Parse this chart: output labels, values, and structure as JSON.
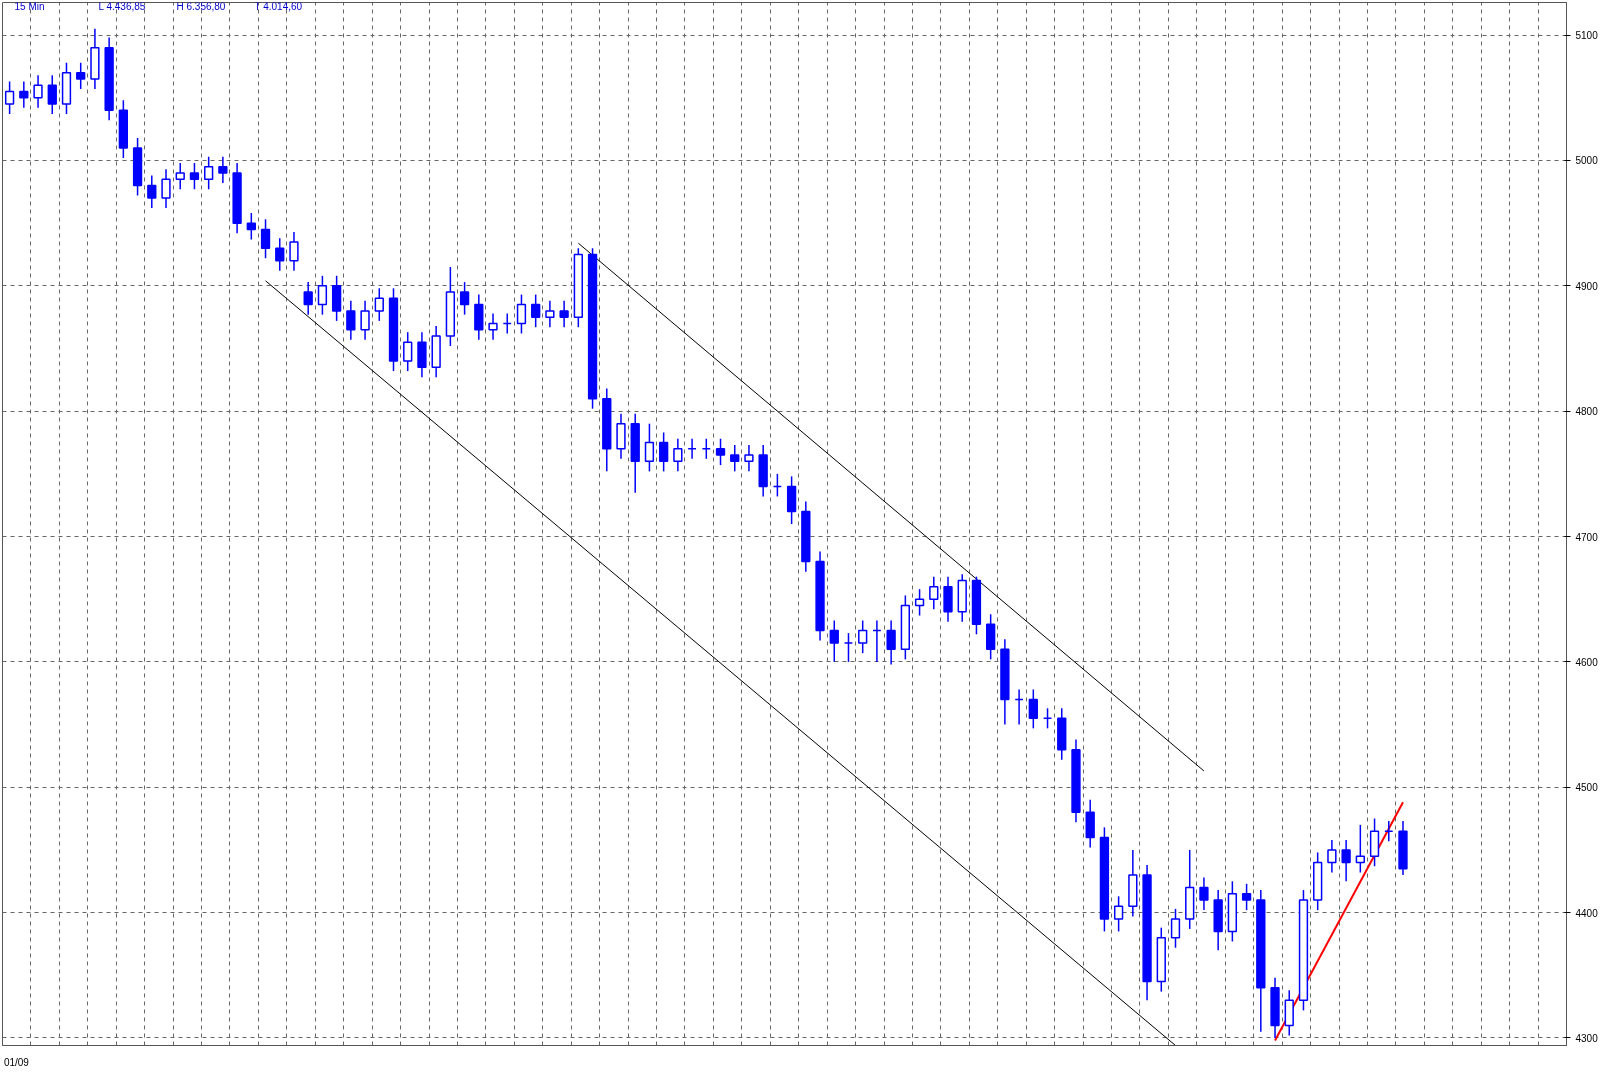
{
  "chart_data": {
    "type": "candlestick",
    "annotations": [
      "15 Min",
      "L 4.436,85",
      "H 6.356,80",
      "T 4.014,60"
    ],
    "categories": [
      "01/09",
      null,
      null,
      null,
      null,
      null,
      null,
      null,
      null,
      null,
      null,
      null,
      null,
      null,
      null,
      null,
      null,
      null,
      null,
      null,
      null,
      null,
      null,
      null,
      null,
      null,
      null,
      null,
      null,
      null,
      null,
      null,
      null,
      null,
      null,
      null,
      null,
      null,
      null,
      null,
      null,
      null,
      null,
      null,
      null,
      null,
      null,
      null,
      null,
      null,
      null,
      null,
      null,
      null,
      null,
      null,
      null,
      null,
      null,
      null,
      null,
      null,
      null,
      null,
      null,
      null,
      null,
      null,
      null,
      null,
      null,
      null,
      null,
      null,
      null,
      null,
      null,
      null,
      null,
      null,
      null,
      null,
      null,
      null,
      null,
      null,
      null,
      null,
      null,
      null,
      null,
      null,
      null,
      null,
      null,
      null,
      null,
      null,
      null,
      null,
      null,
      null,
      null,
      null,
      null,
      null,
      null,
      null,
      null,
      null
    ],
    "color": "#0000ff",
    "ohlc": [
      [
        5045,
        5063,
        5037,
        5055
      ],
      [
        5055,
        5063,
        5042,
        5050
      ],
      [
        5050,
        5068,
        5042,
        5060
      ],
      [
        5060,
        5068,
        5037,
        5045
      ],
      [
        5045,
        5078,
        5037,
        5070
      ],
      [
        5070,
        5078,
        5057,
        5065
      ],
      [
        5065,
        5105,
        5057,
        5090
      ],
      [
        5090,
        5098,
        5032,
        5040
      ],
      [
        5040,
        5048,
        5002,
        5010
      ],
      [
        5010,
        5018,
        4972,
        4980
      ],
      [
        4980,
        4988,
        4962,
        4970
      ],
      [
        4970,
        4993,
        4962,
        4985
      ],
      [
        4985,
        4998,
        4977,
        4990
      ],
      [
        4990,
        4998,
        4977,
        4985
      ],
      [
        4985,
        5003,
        4977,
        4995
      ],
      [
        4995,
        5003,
        4982,
        4990
      ],
      [
        4990,
        4998,
        4942,
        4950
      ],
      [
        4950,
        4958,
        4937,
        4945
      ],
      [
        4945,
        4953,
        4922,
        4930
      ],
      [
        4930,
        4938,
        4912,
        4920
      ],
      [
        4920,
        4943,
        4912,
        4935
      ],
      [
        4895,
        4903,
        4877,
        4885
      ],
      [
        4885,
        4908,
        4877,
        4900
      ],
      [
        4900,
        4908,
        4872,
        4880
      ],
      [
        4880,
        4888,
        4857,
        4865
      ],
      [
        4865,
        4888,
        4857,
        4880
      ],
      [
        4880,
        4898,
        4872,
        4890
      ],
      [
        4890,
        4898,
        4832,
        4840
      ],
      [
        4840,
        4863,
        4832,
        4855
      ],
      [
        4855,
        4863,
        4827,
        4835
      ],
      [
        4835,
        4868,
        4827,
        4860
      ],
      [
        4860,
        4915,
        4852,
        4895
      ],
      [
        4895,
        4903,
        4877,
        4885
      ],
      [
        4885,
        4893,
        4857,
        4865
      ],
      [
        4865,
        4878,
        4857,
        4870
      ],
      [
        4870,
        4878,
        4862,
        4870
      ],
      [
        4870,
        4893,
        4862,
        4885
      ],
      [
        4885,
        4893,
        4867,
        4875
      ],
      [
        4875,
        4888,
        4867,
        4880
      ],
      [
        4880,
        4888,
        4867,
        4875
      ],
      [
        4875,
        4930,
        4867,
        4925
      ],
      [
        4925,
        4930,
        4802,
        4810
      ],
      [
        4810,
        4818,
        4752,
        4770
      ],
      [
        4770,
        4798,
        4762,
        4790
      ],
      [
        4790,
        4798,
        4735,
        4760
      ],
      [
        4760,
        4790,
        4752,
        4775
      ],
      [
        4775,
        4783,
        4752,
        4760
      ],
      [
        4760,
        4778,
        4752,
        4770
      ],
      [
        4770,
        4778,
        4762,
        4770
      ],
      [
        4770,
        4778,
        4762,
        4770
      ],
      [
        4770,
        4778,
        4757,
        4765
      ],
      [
        4765,
        4773,
        4752,
        4760
      ],
      [
        4760,
        4773,
        4752,
        4765
      ],
      [
        4765,
        4773,
        4732,
        4740
      ],
      [
        4740,
        4750,
        4732,
        4740
      ],
      [
        4740,
        4748,
        4710,
        4720
      ],
      [
        4720,
        4728,
        4672,
        4680
      ],
      [
        4680,
        4688,
        4617,
        4625
      ],
      [
        4625,
        4633,
        4600,
        4615
      ],
      [
        4615,
        4623,
        4600,
        4615
      ],
      [
        4615,
        4633,
        4607,
        4625
      ],
      [
        4625,
        4633,
        4600,
        4625
      ],
      [
        4625,
        4633,
        4598,
        4610
      ],
      [
        4610,
        4653,
        4602,
        4645
      ],
      [
        4645,
        4658,
        4637,
        4650
      ],
      [
        4650,
        4668,
        4642,
        4660
      ],
      [
        4660,
        4668,
        4632,
        4640
      ],
      [
        4640,
        4670,
        4632,
        4665
      ],
      [
        4665,
        4668,
        4622,
        4630
      ],
      [
        4630,
        4638,
        4602,
        4610
      ],
      [
        4610,
        4618,
        4550,
        4570
      ],
      [
        4570,
        4578,
        4550,
        4570
      ],
      [
        4570,
        4578,
        4547,
        4555
      ],
      [
        4555,
        4563,
        4547,
        4555
      ],
      [
        4555,
        4563,
        4522,
        4530
      ],
      [
        4530,
        4538,
        4472,
        4480
      ],
      [
        4480,
        4490,
        4452,
        4460
      ],
      [
        4460,
        4468,
        4385,
        4395
      ],
      [
        4395,
        4413,
        4385,
        4405
      ],
      [
        4405,
        4450,
        4397,
        4430
      ],
      [
        4430,
        4438,
        4330,
        4345
      ],
      [
        4345,
        4388,
        4337,
        4380
      ],
      [
        4380,
        4403,
        4372,
        4395
      ],
      [
        4395,
        4450,
        4387,
        4420
      ],
      [
        4420,
        4428,
        4402,
        4410
      ],
      [
        4410,
        4418,
        4370,
        4385
      ],
      [
        4385,
        4425,
        4377,
        4415
      ],
      [
        4415,
        4423,
        4402,
        4410
      ],
      [
        4410,
        4418,
        4305,
        4340
      ],
      [
        4340,
        4348,
        4300,
        4310
      ],
      [
        4310,
        4338,
        4302,
        4330
      ],
      [
        4330,
        4418,
        4322,
        4410
      ],
      [
        4410,
        4448,
        4402,
        4440
      ],
      [
        4440,
        4458,
        4432,
        4450
      ],
      [
        4450,
        4458,
        4425,
        4440
      ],
      [
        4440,
        4470,
        4432,
        4445
      ],
      [
        4445,
        4475,
        4437,
        4465
      ],
      [
        4465,
        4473,
        4457,
        4465
      ],
      [
        4465,
        4473,
        4430,
        4435
      ],
      null,
      null,
      null,
      null,
      null,
      null,
      null,
      null,
      null,
      null,
      null
    ],
    "series": [
      {
        "type": "line",
        "color": "#000000",
        "values": [
          null,
          null,
          null,
          null,
          null,
          null,
          null,
          null,
          null,
          null,
          null,
          null,
          null,
          null,
          null,
          null,
          null,
          null,
          4904,
          null,
          null,
          null,
          null,
          null,
          null,
          null,
          null,
          null,
          null,
          null,
          null,
          null,
          null,
          null,
          null,
          null,
          null,
          null,
          null,
          null,
          null,
          null,
          null,
          null,
          null,
          null,
          null,
          null,
          null,
          null,
          null,
          null,
          null,
          null,
          null,
          null,
          null,
          null,
          null,
          null,
          null,
          null,
          null,
          null,
          null,
          null,
          null,
          null,
          null,
          null,
          null,
          null,
          null,
          null,
          null,
          null,
          null,
          null,
          null,
          null,
          null,
          null,
          4294,
          null,
          null,
          null,
          null,
          null,
          null,
          null,
          null,
          null,
          null,
          null,
          null,
          null,
          null,
          null,
          null,
          null,
          null,
          null,
          null,
          null,
          null,
          null,
          null,
          null,
          null,
          null
        ]
      },
      {
        "type": "line",
        "color": "#000000",
        "values": [
          null,
          null,
          null,
          null,
          null,
          null,
          null,
          null,
          null,
          null,
          null,
          null,
          null,
          null,
          null,
          null,
          null,
          null,
          null,
          null,
          null,
          null,
          null,
          null,
          null,
          null,
          null,
          null,
          null,
          null,
          null,
          null,
          null,
          null,
          null,
          null,
          null,
          null,
          null,
          null,
          4934,
          null,
          null,
          null,
          null,
          null,
          null,
          null,
          null,
          null,
          null,
          null,
          null,
          null,
          null,
          null,
          null,
          null,
          null,
          null,
          null,
          null,
          null,
          null,
          null,
          null,
          null,
          null,
          null,
          null,
          null,
          null,
          null,
          null,
          null,
          null,
          null,
          null,
          null,
          null,
          null,
          null,
          null,
          null,
          4513,
          null,
          null,
          null,
          null,
          null,
          null,
          null,
          null,
          null,
          null,
          null,
          null,
          null,
          null,
          null,
          null,
          null,
          null,
          null,
          null,
          null,
          null,
          null,
          null,
          null
        ]
      },
      {
        "type": "line",
        "color": "#ff0000",
        "values": [
          null,
          null,
          null,
          null,
          null,
          null,
          null,
          null,
          null,
          null,
          null,
          null,
          null,
          null,
          null,
          null,
          null,
          null,
          null,
          null,
          null,
          null,
          null,
          null,
          null,
          null,
          null,
          null,
          null,
          null,
          null,
          null,
          null,
          null,
          null,
          null,
          null,
          null,
          null,
          null,
          null,
          null,
          null,
          null,
          null,
          null,
          null,
          null,
          null,
          null,
          null,
          null,
          null,
          null,
          null,
          null,
          null,
          null,
          null,
          null,
          null,
          null,
          null,
          null,
          null,
          null,
          null,
          null,
          null,
          null,
          null,
          null,
          null,
          null,
          null,
          null,
          null,
          null,
          null,
          null,
          null,
          null,
          null,
          null,
          null,
          null,
          null,
          null,
          null,
          4298,
          null,
          null,
          null,
          null,
          null,
          null,
          null,
          null,
          4488,
          null,
          null,
          null,
          null,
          null,
          null,
          null,
          null,
          null,
          null,
          null
        ]
      }
    ],
    "ylim": [
      4294,
      5126
    ],
    "yticks": [
      4300,
      4400,
      4500,
      4600,
      4700,
      4800,
      4900,
      5000,
      5100
    ],
    "grid": true,
    "line_style": "solid"
  }
}
